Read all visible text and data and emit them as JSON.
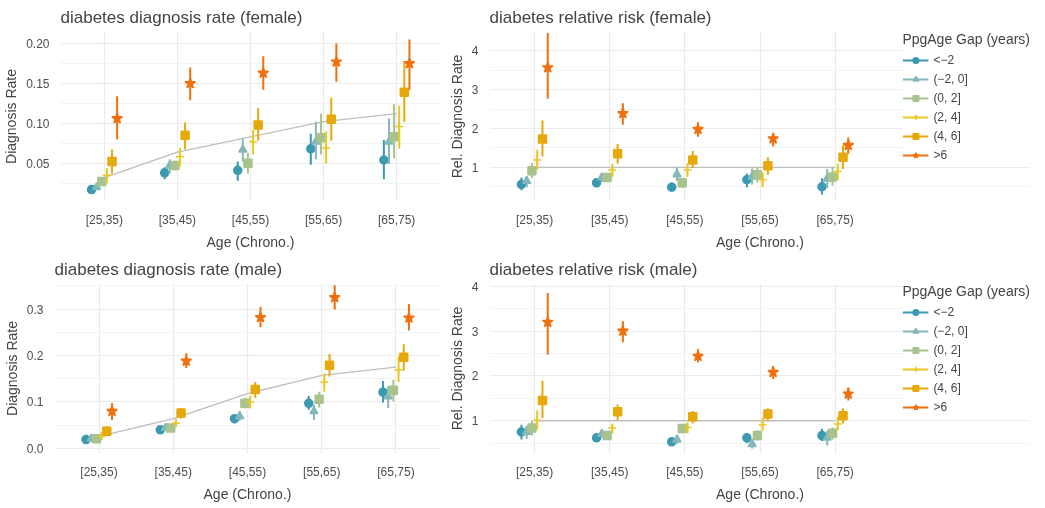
{
  "chart_data": [
    {
      "type": "scatter",
      "title": "diabetes diagnosis rate (female)",
      "xlabel": "Age (Chrono.)",
      "ylabel": "Diagnosis Rate",
      "categories": [
        "[25,35)",
        "[35,45)",
        "[45,55)",
        "[55,65)",
        "[65,75)"
      ],
      "ylim": [
        0.002,
        0.215
      ],
      "yticks": [
        {
          "value": 0.05,
          "label": "0.05"
        },
        {
          "value": 0.1,
          "label": "0.10"
        },
        {
          "value": 0.15,
          "label": "0.15"
        },
        {
          "value": 0.2,
          "label": "0.20"
        }
      ],
      "grid": true,
      "legend": false,
      "series": [
        {
          "color": "#3b9ab2",
          "marker": "circle",
          "values": [
            0.017,
            0.038,
            0.041,
            0.068,
            0.054
          ],
          "errors": [
            [
              0.013,
              0.02
            ],
            [
              0.03,
              0.045
            ],
            [
              0.028,
              0.052
            ],
            [
              0.048,
              0.087
            ],
            [
              0.03,
              0.079
            ]
          ]
        },
        {
          "color": "#85b8bb",
          "marker": "triangle",
          "values": [
            0.02,
            0.047,
            0.067,
            0.077,
            0.077
          ],
          "errors": [
            [
              0.017,
              0.023
            ],
            [
              0.037,
              0.055
            ],
            [
              0.052,
              0.081
            ],
            [
              0.055,
              0.102
            ],
            [
              0.049,
              0.106
            ]
          ]
        },
        {
          "color": "#a9c38f",
          "marker": "square",
          "values": [
            0.027,
            0.047,
            0.05,
            0.082,
            0.083
          ],
          "errors": [
            [
              0.023,
              0.031
            ],
            [
              0.041,
              0.053
            ],
            [
              0.037,
              0.063
            ],
            [
              0.061,
              0.112
            ],
            [
              0.056,
              0.124
            ]
          ]
        },
        {
          "color": "#e9c825",
          "marker": "cross",
          "values": [
            0.035,
            0.058,
            0.077,
            0.069,
            0.096
          ],
          "errors": [
            [
              0.025,
              0.044
            ],
            [
              0.046,
              0.069
            ],
            [
              0.061,
              0.092
            ],
            [
              0.05,
              0.09
            ],
            [
              0.068,
              0.122
            ]
          ]
        },
        {
          "color": "#e6a90b",
          "marker": "square",
          "values": [
            0.052,
            0.085,
            0.098,
            0.105,
            0.139
          ],
          "errors": [
            [
              0.037,
              0.067
            ],
            [
              0.067,
              0.101
            ],
            [
              0.078,
              0.119
            ],
            [
              0.078,
              0.132
            ],
            [
              0.102,
              0.178
            ]
          ]
        },
        {
          "color": "#f0700d",
          "marker": "star",
          "values": [
            0.106,
            0.15,
            0.163,
            0.177,
            0.175
          ],
          "errors": [
            [
              0.08,
              0.134
            ],
            [
              0.129,
              0.17
            ],
            [
              0.142,
              0.184
            ],
            [
              0.152,
              0.2
            ],
            [
              0.142,
              0.205
            ]
          ]
        },
        {
          "type": "line",
          "color": "#bebebe",
          "values": [
            0.032,
            0.064,
            0.083,
            0.102,
            0.112
          ]
        }
      ]
    },
    {
      "type": "scatter",
      "title": "diabetes relative risk (female)",
      "xlabel": "Age (Chrono.)",
      "ylabel": "Rel. Diagnosis Rate",
      "legend_title": "PpgAge Gap (years)",
      "categories": [
        "[25,35)",
        "[35,45)",
        "[45,55)",
        "[55,65)",
        "[65,75)"
      ],
      "ylim": [
        0.12,
        4.5
      ],
      "yticks": [
        1,
        2,
        3,
        4
      ],
      "grid": true,
      "legend": "right",
      "series": [
        {
          "name": "<−2",
          "color": "#3b9ab2",
          "marker": "circle",
          "values": [
            0.56,
            0.6,
            0.49,
            0.68,
            0.5
          ],
          "errors": [
            [
              0.41,
              0.74
            ],
            [
              0.49,
              0.69
            ],
            [
              0.39,
              0.61
            ],
            [
              0.49,
              0.84
            ],
            [
              0.3,
              0.72
            ]
          ]
        },
        {
          "name": "(−2, 0]",
          "color": "#85b8bb",
          "marker": "triangle",
          "values": [
            0.65,
            0.74,
            0.82,
            0.76,
            0.71
          ],
          "errors": [
            [
              0.49,
              0.78
            ],
            [
              0.63,
              0.84
            ],
            [
              0.65,
              1.0
            ],
            [
              0.56,
              0.97
            ],
            [
              0.47,
              0.96
            ]
          ]
        },
        {
          "name": "(0, 2]",
          "color": "#a9c38f",
          "marker": "square",
          "values": [
            0.91,
            0.74,
            0.6,
            0.81,
            0.75
          ],
          "errors": [
            [
              0.72,
              1.11
            ],
            [
              0.63,
              0.84
            ],
            [
              0.47,
              0.72
            ],
            [
              0.61,
              1.0
            ],
            [
              0.53,
              1.0
            ]
          ]
        },
        {
          "name": "(2, 4]",
          "color": "#e9c825",
          "marker": "cross",
          "values": [
            1.19,
            0.93,
            0.93,
            0.68,
            0.89
          ],
          "errors": [
            [
              0.93,
              1.46
            ],
            [
              0.75,
              1.09
            ],
            [
              0.75,
              1.11
            ],
            [
              0.49,
              0.87
            ],
            [
              0.67,
              1.09
            ]
          ]
        },
        {
          "name": "(4, 6]",
          "color": "#e6a90b",
          "marker": "square",
          "values": [
            1.73,
            1.35,
            1.19,
            1.04,
            1.26
          ],
          "errors": [
            [
              1.28,
              2.21
            ],
            [
              1.09,
              1.6
            ],
            [
              0.98,
              1.42
            ],
            [
              0.81,
              1.26
            ],
            [
              0.96,
              1.57
            ]
          ]
        },
        {
          "name": ">6",
          "color": "#f0700d",
          "marker": "star",
          "values": [
            3.57,
            2.39,
            1.98,
            1.74,
            1.57
          ],
          "errors": [
            [
              2.77,
              4.46
            ],
            [
              2.1,
              2.65
            ],
            [
              1.79,
              2.16
            ],
            [
              1.54,
              1.89
            ],
            [
              1.35,
              1.77
            ]
          ]
        },
        {
          "type": "line",
          "color": "#bebebe",
          "values": [
            1,
            1,
            1,
            1,
            1
          ]
        }
      ]
    },
    {
      "type": "scatter",
      "title": "diabetes diagnosis rate (male)",
      "xlabel": "Age (Chrono.)",
      "ylabel": "Diagnosis Rate",
      "categories": [
        "[25,35)",
        "[35,45)",
        "[45,55)",
        "[55,65)",
        "[65,75)"
      ],
      "ylim": [
        -0.011,
        0.355
      ],
      "yticks": [
        {
          "value": 0,
          "label": "0.0"
        },
        {
          "value": 0.1,
          "label": "0.1"
        },
        {
          "value": 0.2,
          "label": "0.2"
        },
        {
          "value": 0.3,
          "label": "0.3"
        }
      ],
      "grid": true,
      "legend": false,
      "series": [
        {
          "color": "#3b9ab2",
          "marker": "circle",
          "values": [
            0.019,
            0.04,
            0.064,
            0.097,
            0.121
          ],
          "errors": [
            [
              0.016,
              0.022
            ],
            [
              0.036,
              0.044
            ],
            [
              0.054,
              0.073
            ],
            [
              0.083,
              0.113
            ],
            [
              0.099,
              0.145
            ]
          ]
        },
        {
          "color": "#85b8bb",
          "marker": "triangle",
          "values": [
            0.021,
            0.044,
            0.069,
            0.08,
            0.112
          ],
          "errors": [
            [
              0.018,
              0.024
            ],
            [
              0.04,
              0.048
            ],
            [
              0.06,
              0.08
            ],
            [
              0.061,
              0.094
            ],
            [
              0.087,
              0.134
            ]
          ]
        },
        {
          "color": "#a9c38f",
          "marker": "square",
          "values": [
            0.021,
            0.044,
            0.097,
            0.106,
            0.125
          ],
          "errors": [
            [
              0.018,
              0.024
            ],
            [
              0.04,
              0.048
            ],
            [
              0.086,
              0.109
            ],
            [
              0.088,
              0.122
            ],
            [
              0.101,
              0.148
            ]
          ]
        },
        {
          "color": "#e9c825",
          "marker": "cross",
          "values": [
            0.026,
            0.054,
            0.1,
            0.143,
            0.169
          ],
          "errors": [
            [
              0.018,
              0.035
            ],
            [
              0.046,
              0.064
            ],
            [
              0.086,
              0.114
            ],
            [
              0.122,
              0.162
            ],
            [
              0.143,
              0.198
            ]
          ]
        },
        {
          "color": "#e6a90b",
          "marker": "square",
          "values": [
            0.037,
            0.076,
            0.127,
            0.179,
            0.196
          ],
          "errors": [
            [
              0.028,
              0.047
            ],
            [
              0.064,
              0.087
            ],
            [
              0.109,
              0.143
            ],
            [
              0.155,
              0.203
            ],
            [
              0.167,
              0.224
            ]
          ]
        },
        {
          "color": "#f0700d",
          "marker": "star",
          "values": [
            0.08,
            0.188,
            0.282,
            0.325,
            0.281
          ],
          "errors": [
            [
              0.061,
              0.097
            ],
            [
              0.173,
              0.205
            ],
            [
              0.261,
              0.305
            ],
            [
              0.299,
              0.351
            ],
            [
              0.254,
              0.311
            ]
          ]
        },
        {
          "type": "line",
          "color": "#bebebe",
          "values": [
            0.026,
            0.064,
            0.118,
            0.157,
            0.175
          ]
        }
      ]
    },
    {
      "type": "scatter",
      "title": "diabetes relative risk (male)",
      "xlabel": "Age (Chrono.)",
      "ylabel": "Rel. Diagnosis Rate",
      "legend_title": "PpgAge Gap (years)",
      "categories": [
        "[25,35)",
        "[35,45)",
        "[45,55)",
        "[55,65)",
        "[65,75)"
      ],
      "ylim": [
        0.27,
        4.06
      ],
      "yticks": [
        1,
        2,
        3,
        4
      ],
      "grid": true,
      "legend": "right",
      "series": [
        {
          "name": "<−2",
          "color": "#3b9ab2",
          "marker": "circle",
          "values": [
            0.75,
            0.62,
            0.53,
            0.62,
            0.67
          ],
          "errors": [
            [
              0.58,
              0.91
            ],
            [
              0.53,
              0.71
            ],
            [
              0.48,
              0.58
            ],
            [
              0.5,
              0.72
            ],
            [
              0.55,
              0.82
            ]
          ]
        },
        {
          "name": "(−2, 0]",
          "color": "#85b8bb",
          "marker": "triangle",
          "values": [
            0.75,
            0.71,
            0.58,
            0.48,
            0.62
          ],
          "errors": [
            [
              0.6,
              0.89
            ],
            [
              0.62,
              0.8
            ],
            [
              0.49,
              0.65
            ],
            [
              0.38,
              0.58
            ],
            [
              0.45,
              0.78
            ]
          ]
        },
        {
          "name": "(0, 2]",
          "color": "#a9c38f",
          "marker": "square",
          "values": [
            0.84,
            0.67,
            0.83,
            0.67,
            0.72
          ],
          "errors": [
            [
              0.67,
              1.0
            ],
            [
              0.61,
              0.73
            ],
            [
              0.72,
              0.93
            ],
            [
              0.56,
              0.78
            ],
            [
              0.58,
              0.85
            ]
          ]
        },
        {
          "name": "(2, 4]",
          "color": "#e9c825",
          "marker": "cross",
          "values": [
            1.01,
            0.84,
            0.85,
            0.91,
            0.93
          ],
          "errors": [
            [
              0.8,
              1.23
            ],
            [
              0.72,
              0.94
            ],
            [
              0.72,
              0.96
            ],
            [
              0.77,
              1.06
            ],
            [
              0.78,
              1.09
            ]
          ]
        },
        {
          "name": "(4, 6]",
          "color": "#e6a90b",
          "marker": "square",
          "values": [
            1.45,
            1.2,
            1.09,
            1.15,
            1.11
          ],
          "errors": [
            [
              1.06,
              1.89
            ],
            [
              1.01,
              1.36
            ],
            [
              0.94,
              1.22
            ],
            [
              1.0,
              1.28
            ],
            [
              0.94,
              1.28
            ]
          ]
        },
        {
          "name": ">6",
          "color": "#f0700d",
          "marker": "star",
          "values": [
            3.2,
            3.0,
            2.44,
            2.08,
            1.6
          ],
          "errors": [
            [
              2.47,
              3.85
            ],
            [
              2.75,
              3.22
            ],
            [
              2.3,
              2.6
            ],
            [
              1.93,
              2.22
            ],
            [
              1.45,
              1.74
            ]
          ]
        },
        {
          "type": "line",
          "color": "#bebebe",
          "values": [
            1,
            1,
            1,
            1,
            1
          ]
        }
      ]
    }
  ]
}
